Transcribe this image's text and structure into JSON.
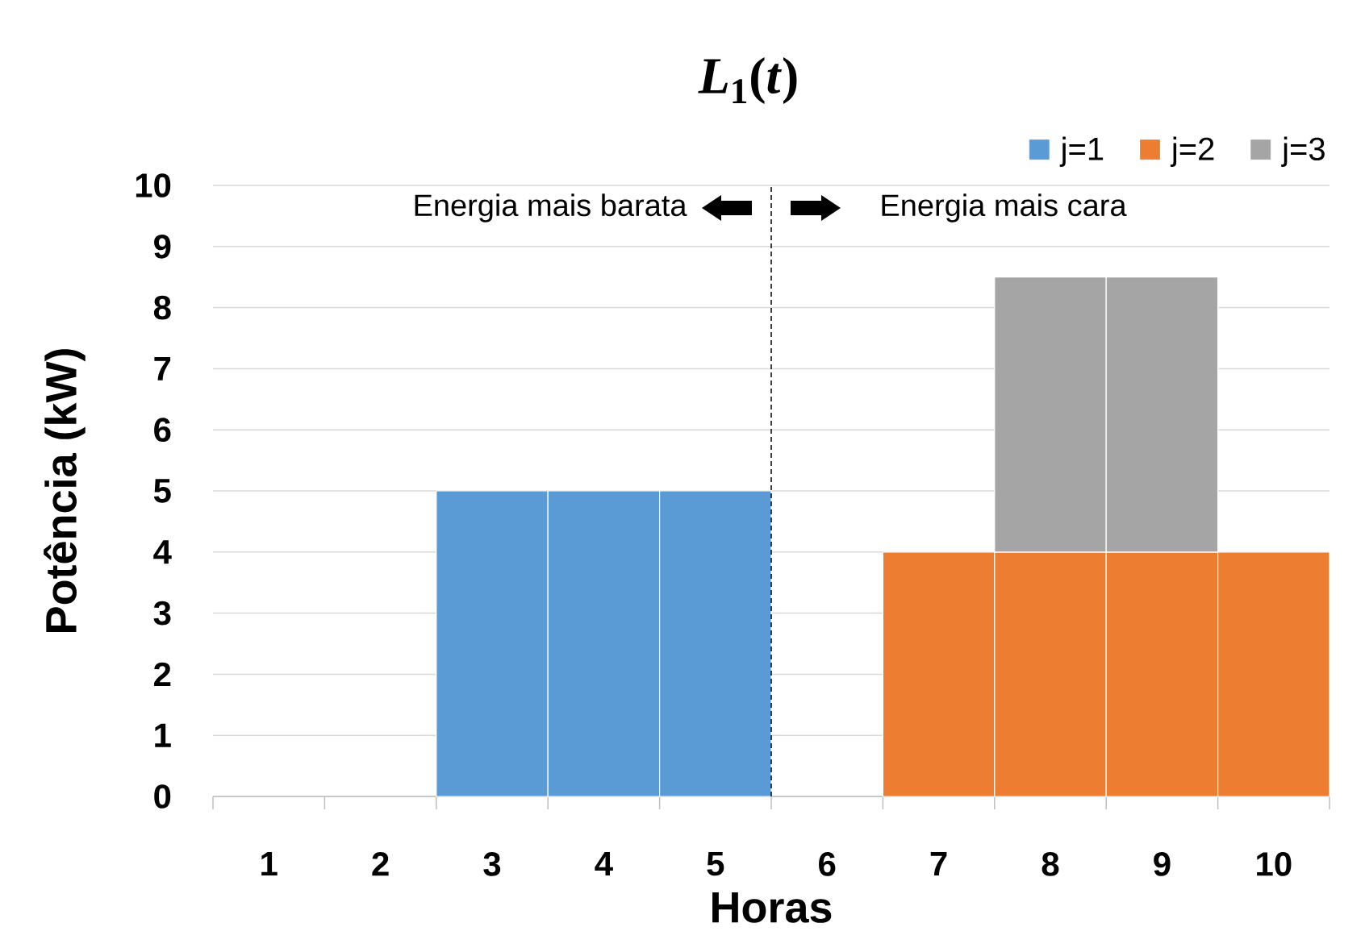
{
  "chart_data": {
    "type": "bar",
    "title": "*L*$_{1}$(*t*)",
    "xlabel": "Horas",
    "ylabel": "Potência (kW)",
    "x": [
      3,
      4,
      5,
      7,
      8,
      9,
      10
    ],
    "xlim": [
      0.5,
      10.5
    ],
    "xticks": [
      {
        "value": 0.5,
        "label": null
      },
      1,
      {
        "value": 1.5,
        "label": null
      },
      2,
      {
        "value": 2.5,
        "label": null
      },
      3,
      {
        "value": 3.5,
        "label": null
      },
      4,
      {
        "value": 4.5,
        "label": null
      },
      5,
      {
        "value": 5.5,
        "label": null
      },
      6,
      {
        "value": 6.5,
        "label": null
      },
      7,
      {
        "value": 7.5,
        "label": null
      },
      8,
      {
        "value": 8.5,
        "label": null
      },
      9,
      {
        "value": 9.5,
        "label": null
      },
      10,
      {
        "value": 10.5,
        "label": null
      }
    ],
    "ylim": [
      0,
      10
    ],
    "yticks": [
      0,
      1,
      2,
      3,
      4,
      5,
      6,
      7,
      8,
      9,
      10
    ],
    "stacked": true,
    "series": [
      {
        "name": "j=1",
        "color": "#5b9bd5",
        "values": [
          5,
          5,
          5,
          null,
          null,
          null,
          null
        ]
      },
      {
        "name": "j=2",
        "color": "#ed7d31",
        "values": [
          null,
          null,
          null,
          4,
          4,
          4,
          4
        ]
      },
      {
        "name": "j=3",
        "color": "#a5a5a5",
        "values": [
          null,
          null,
          null,
          null,
          4.5,
          4.5,
          null
        ]
      }
    ],
    "ref_lines": [
      {
        "axis": "x",
        "value": 5.5,
        "color": "#000000",
        "line_style": "dashed"
      }
    ],
    "annotations": [
      "Energia mais barata",
      "Energia mais cara"
    ],
    "grid": "y",
    "legend": "top right"
  }
}
